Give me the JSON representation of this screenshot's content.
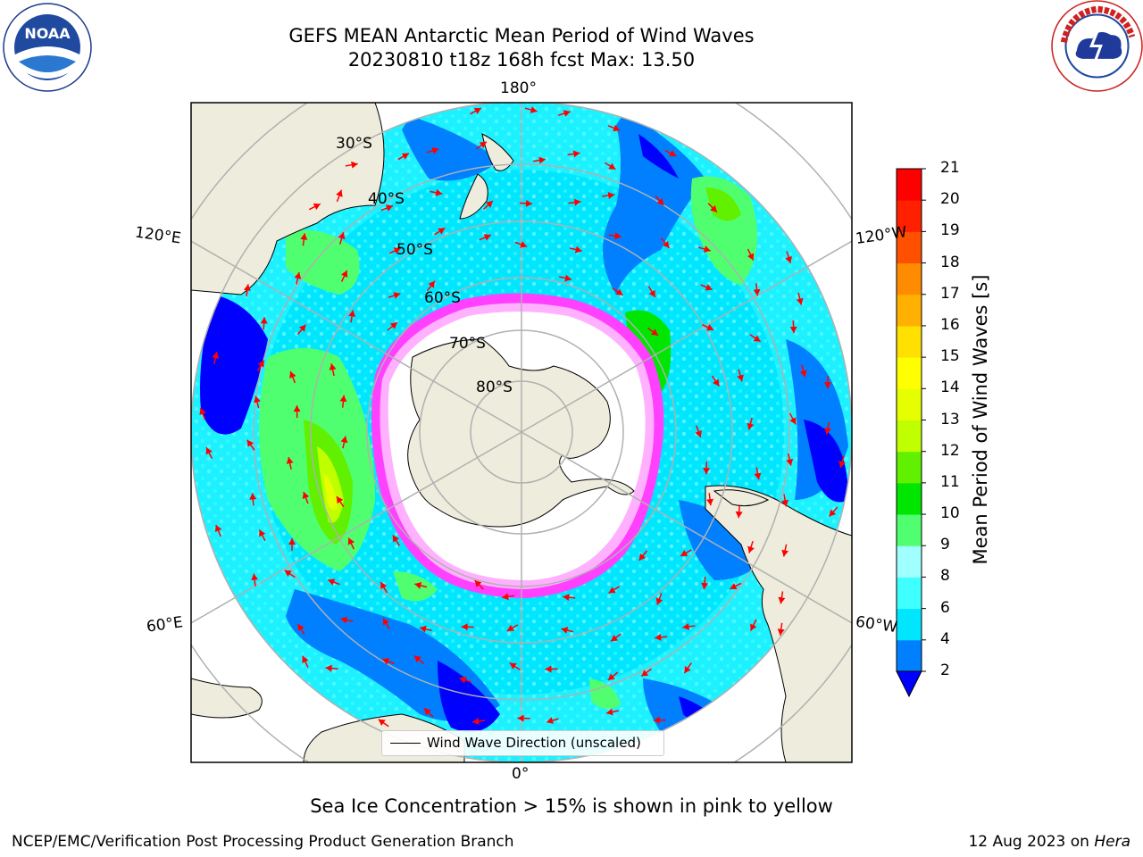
{
  "title": {
    "line1": "GEFS MEAN Antarctic Mean Period of Wind Waves",
    "line2": "20230810 t18z 168h fcst   Max: 13.50"
  },
  "logos": {
    "left": "NOAA",
    "left_ring_text": "NATIONAL OCEANIC AND ATMOSPHERIC ADMINISTRATION · U.S. DEPARTMENT OF COMMERCE",
    "right_ring_text": "NATIONAL WEATHER SERVICE"
  },
  "map": {
    "projection": "south-polar-stereographic",
    "longitude_labels": {
      "top": "180°",
      "upper_left": "120°E",
      "upper_right": "120°W",
      "lower_left": "60°E",
      "lower_right": "60°W",
      "bottom": "0°"
    },
    "latitude_labels": [
      "30°S",
      "40°S",
      "50°S",
      "60°S",
      "70°S",
      "80°S"
    ],
    "colors": {
      "land": "#eeecdc",
      "grid": "#b0b0b0",
      "arrow": "#ff0000",
      "sea_ice_edge": "#ff40ff"
    }
  },
  "colorbar": {
    "title": "Mean Period of Wind Waves [s]",
    "ticks": [
      "2",
      "4",
      "6",
      "8",
      "9",
      "10",
      "11",
      "12",
      "13",
      "14",
      "15",
      "16",
      "17",
      "18",
      "19",
      "20",
      "21"
    ],
    "colors": [
      "#0080ff",
      "#00e6ff",
      "#40ffff",
      "#a0ffff",
      "#50ff70",
      "#00e600",
      "#60f000",
      "#c0ff00",
      "#e6ff00",
      "#ffff00",
      "#ffe000",
      "#ffb000",
      "#ff8c00",
      "#ff5000",
      "#ff2000",
      "#ff0000"
    ],
    "under_color": "#0000ff"
  },
  "legend": {
    "label": "Wind Wave Direction (unscaled)"
  },
  "sea_ice_note": "Sea Ice Concentration > 15% is shown in pink to yellow",
  "footer": {
    "left": "NCEP/EMC/Verification Post Processing Product Generation Branch",
    "date": "12 Aug 2023 on",
    "machine": "Hera"
  }
}
